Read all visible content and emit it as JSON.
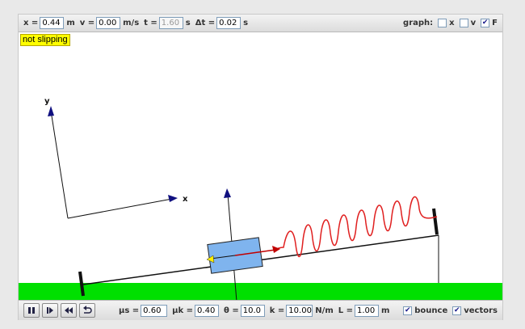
{
  "top": {
    "x_label": "x =",
    "x_value": "0.44",
    "x_unit": "m",
    "v_label": "v =",
    "v_value": "0.00",
    "v_unit": "m/s",
    "t_label": "t =",
    "t_value": "1.60",
    "t_unit": "s",
    "dt_label": "Δt =",
    "dt_value": "0.02",
    "dt_unit": "s",
    "graph_label": "graph:",
    "graph_x_label": "x",
    "graph_x_checked": false,
    "graph_v_label": "v",
    "graph_v_checked": false,
    "graph_f_label": "F",
    "graph_f_checked": true
  },
  "status": {
    "text": "not slipping",
    "color": "#ffff00"
  },
  "scene": {
    "axis_y_label": "y",
    "axis_x_label": "x",
    "ground_color": "#00e000",
    "block_color": "#7fb4ee",
    "spring_color": "#e02020"
  },
  "bottom": {
    "mus_label": "μs =",
    "mus_value": "0.60",
    "muk_label": "μk =",
    "muk_value": "0.40",
    "theta_label": "θ =",
    "theta_value": "10.0",
    "k_label": "k =",
    "k_value": "10.00",
    "k_unit": "N/m",
    "L_label": "L =",
    "L_value": "1.00",
    "L_unit": "m",
    "bounce_label": "bounce",
    "bounce_checked": true,
    "vectors_label": "vectors",
    "vectors_checked": true
  }
}
